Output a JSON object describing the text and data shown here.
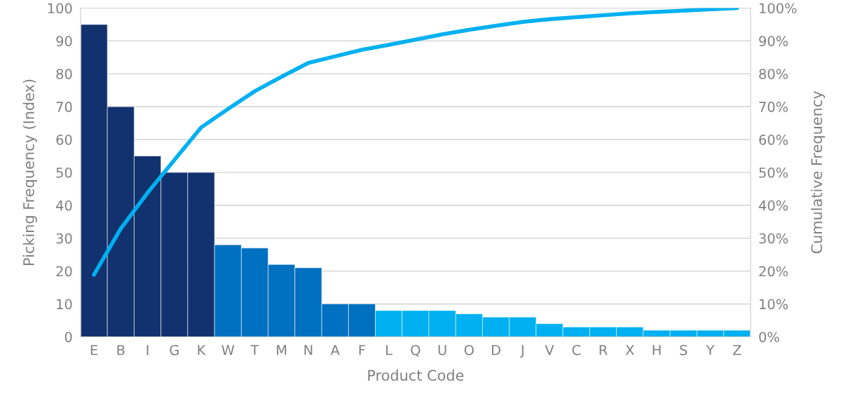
{
  "chart_data": {
    "type": "bar",
    "xlabel": "Product Code",
    "ylabel": "Picking Frequency (Index)",
    "y2label": "Cumulative Frequency",
    "categories": [
      "E",
      "B",
      "I",
      "G",
      "K",
      "W",
      "T",
      "M",
      "N",
      "A",
      "F",
      "L",
      "Q",
      "U",
      "O",
      "D",
      "J",
      "V",
      "C",
      "R",
      "X",
      "H",
      "S",
      "Y",
      "Z"
    ],
    "series": [
      {
        "colors": [
          "#12326f",
          "#12326f",
          "#12326f",
          "#12326f",
          "#12326f",
          "#0070c0",
          "#0070c0",
          "#0070c0",
          "#0070c0",
          "#0070c0",
          "#0070c0",
          "#00b0f0",
          "#00b0f0",
          "#00b0f0",
          "#00b0f0",
          "#00b0f0",
          "#00b0f0",
          "#00b0f0",
          "#00b0f0",
          "#00b0f0",
          "#00b0f0",
          "#00b0f0",
          "#00b0f0",
          "#00b0f0",
          "#00b0f0"
        ],
        "values": [
          95,
          70,
          55,
          50,
          50,
          28,
          27,
          22,
          21,
          10,
          10,
          8,
          8,
          8,
          7,
          6,
          6,
          4,
          3,
          3,
          3,
          2,
          2,
          2,
          2
        ]
      },
      {
        "type": "line",
        "axis": "y2",
        "color": "#00b0f0",
        "values": [
          18.9,
          32.9,
          43.8,
          53.8,
          63.7,
          69.3,
          74.7,
          79.1,
          83.3,
          85.3,
          87.3,
          88.8,
          90.4,
          92.0,
          93.4,
          94.6,
          95.8,
          96.6,
          97.2,
          97.8,
          98.4,
          98.8,
          99.2,
          99.6,
          100
        ]
      }
    ],
    "ylim": [
      0,
      100
    ],
    "yticks": [
      0,
      10,
      20,
      30,
      40,
      50,
      60,
      70,
      80,
      90,
      100
    ],
    "y2lim": [
      0,
      100
    ],
    "y2ticks": [
      {
        "value": 0,
        "label": "0%"
      },
      {
        "value": 10,
        "label": "10%"
      },
      {
        "value": 20,
        "label": "20%"
      },
      {
        "value": 30,
        "label": "30%"
      },
      {
        "value": 40,
        "label": "40%"
      },
      {
        "value": 50,
        "label": "50%"
      },
      {
        "value": 60,
        "label": "60%"
      },
      {
        "value": 70,
        "label": "70%"
      },
      {
        "value": 80,
        "label": "80%"
      },
      {
        "value": 90,
        "label": "90%"
      },
      {
        "value": 100,
        "label": "100%"
      }
    ],
    "grid": "y"
  }
}
